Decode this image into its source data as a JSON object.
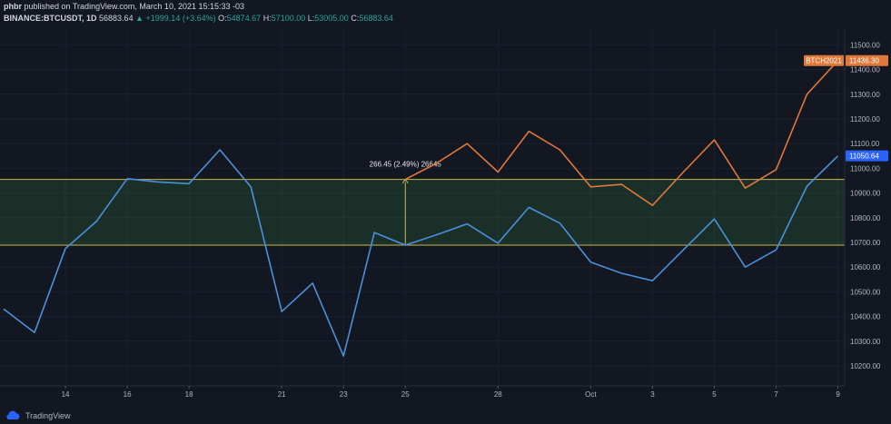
{
  "header": {
    "author": "phbr",
    "published": "published on TradingView.com, March 10, 2021 15:15:33 -03",
    "symbol": "BINANCE:BTCUSDT, 1D",
    "last": "56883.64",
    "arrow": "▲",
    "change": "+1999.14 (+3.64%)",
    "o_label": "O:",
    "o_value": "54874.67",
    "h_label": "H:",
    "h_value": "57100.00",
    "l_label": "L:",
    "l_value": "53005.00",
    "c_label": "C:",
    "c_value": "56883.64"
  },
  "footer": {
    "brand": "TradingView",
    "logo_icon": "tradingview-logo-icon"
  },
  "chart_data": {
    "type": "line",
    "x_ticks": [
      "14",
      "16",
      "18",
      "21",
      "23",
      "25",
      "28",
      "Oct",
      "3",
      "5",
      "7",
      "9"
    ],
    "y_ticks": [
      "10200.00",
      "10300.00",
      "10400.00",
      "10500.00",
      "10600.00",
      "10700.00",
      "10800.00",
      "10900.00",
      "11000.00",
      "11100.00",
      "11200.00",
      "11300.00",
      "11400.00",
      "11500.00"
    ],
    "ylim": [
      10150,
      11550
    ],
    "series": [
      {
        "name": "",
        "color": "#4a90d9",
        "x": [
          0,
          1,
          2,
          3,
          4,
          5,
          6,
          7,
          8,
          9,
          10,
          11,
          12,
          13,
          14,
          15,
          16,
          17,
          18,
          19,
          20,
          21,
          22,
          23,
          24,
          25,
          26,
          27
        ],
        "values": [
          10430,
          10335,
          10675,
          10785,
          10958,
          10945,
          10938,
          11075,
          10925,
          10420,
          10535,
          10240,
          10740,
          10689,
          10730,
          10775,
          10697,
          10842,
          10778,
          10620,
          10575,
          10545,
          10670,
          10795,
          10600,
          10670,
          10928,
          11050
        ]
      },
      {
        "name": "BTCH2021",
        "color": "#e0783a",
        "x": [
          13,
          14,
          15,
          16,
          17,
          18,
          19,
          20,
          21,
          22,
          23,
          24,
          25,
          26,
          27
        ],
        "values": [
          10955,
          11020,
          11100,
          10985,
          11150,
          11075,
          10925,
          10935,
          10850,
          10985,
          11115,
          10920,
          10995,
          11300,
          11436
        ]
      }
    ],
    "price_labels": [
      {
        "text": "11050.64",
        "value": 11050.64,
        "color": "#2962ff"
      },
      {
        "text": "11436.30",
        "value": 11436.3,
        "color": "#e0783a",
        "name": "BTCH2021"
      }
    ],
    "range_box": {
      "top": 10955,
      "bottom": 10689,
      "from_x": 0,
      "to_x": 27
    },
    "measure": {
      "text": "266.45 (2.49%) 26645",
      "x": 13,
      "from": 10689,
      "to": 10955
    }
  }
}
